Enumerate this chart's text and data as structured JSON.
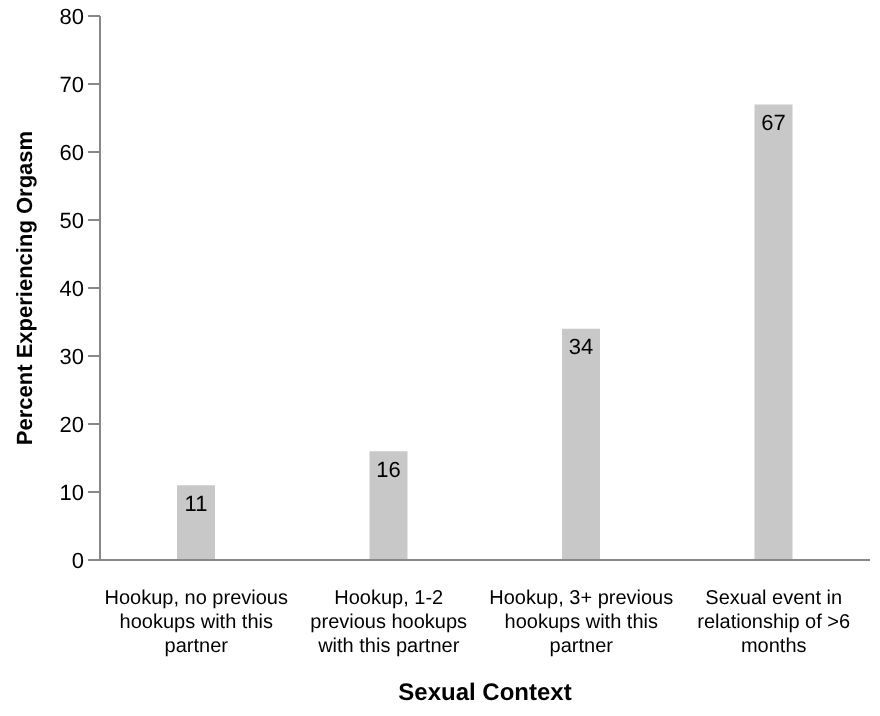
{
  "chart_data": {
    "type": "bar",
    "xlabel": "Sexual Context",
    "ylabel": "Percent Experiencing Orgasm",
    "categories": [
      "Hookup, no previous hookups with this partner",
      "Hookup, 1-2 previous hookups with this partner",
      "Hookup, 3+ previous hookups with this partner",
      "Sexual event in relationship of >6 months"
    ],
    "values": [
      11,
      16,
      34,
      67
    ],
    "color": "#c8c8c8",
    "ylim": [
      0,
      80
    ],
    "yticks": [
      0,
      10,
      20,
      30,
      40,
      50,
      60,
      70,
      80
    ],
    "grid": false,
    "data_labels": true
  }
}
